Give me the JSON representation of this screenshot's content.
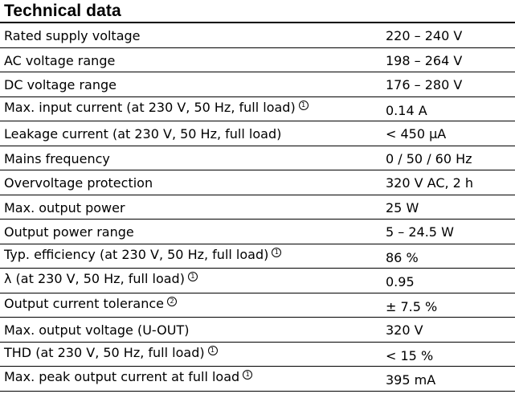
{
  "title": "Technical data",
  "rows": [
    {
      "param": "Rated supply voltage",
      "value": "220 – 240 V",
      "note": ""
    },
    {
      "param": "AC voltage range",
      "value": "198 – 264 V",
      "note": ""
    },
    {
      "param": "DC voltage range",
      "value": "176 – 280 V",
      "note": ""
    },
    {
      "param": "Max. input current (at 230 V, 50 Hz, full load)",
      "value": "0.14 A",
      "note": "1"
    },
    {
      "param": "Leakage current (at 230 V, 50 Hz, full load)",
      "value": "< 450 μA",
      "note": ""
    },
    {
      "param": "Mains frequency",
      "value": "0 / 50 / 60 Hz",
      "note": ""
    },
    {
      "param": "Overvoltage protection",
      "value": "320 V AC, 2 h",
      "note": ""
    },
    {
      "param": "Max. output power",
      "value": "25 W",
      "note": ""
    },
    {
      "param": "Output power range",
      "value": "5 – 24.5 W",
      "note": ""
    },
    {
      "param": "Typ. efficiency (at 230 V, 50 Hz, full load)",
      "value": "86 %",
      "note": "1"
    },
    {
      "param": "λ (at 230 V, 50 Hz, full load)",
      "value": "0.95",
      "note": "1"
    },
    {
      "param": "Output current tolerance",
      "value": "± 7.5 %",
      "note": "2"
    },
    {
      "param": "Max. output voltage (U-OUT)",
      "value": "320 V",
      "note": ""
    },
    {
      "param": "THD (at 230 V, 50 Hz, full load)",
      "value": "< 15 %",
      "note": "1"
    },
    {
      "param": "Max. peak output current at full load",
      "value": "395 mA",
      "note": "1"
    }
  ]
}
